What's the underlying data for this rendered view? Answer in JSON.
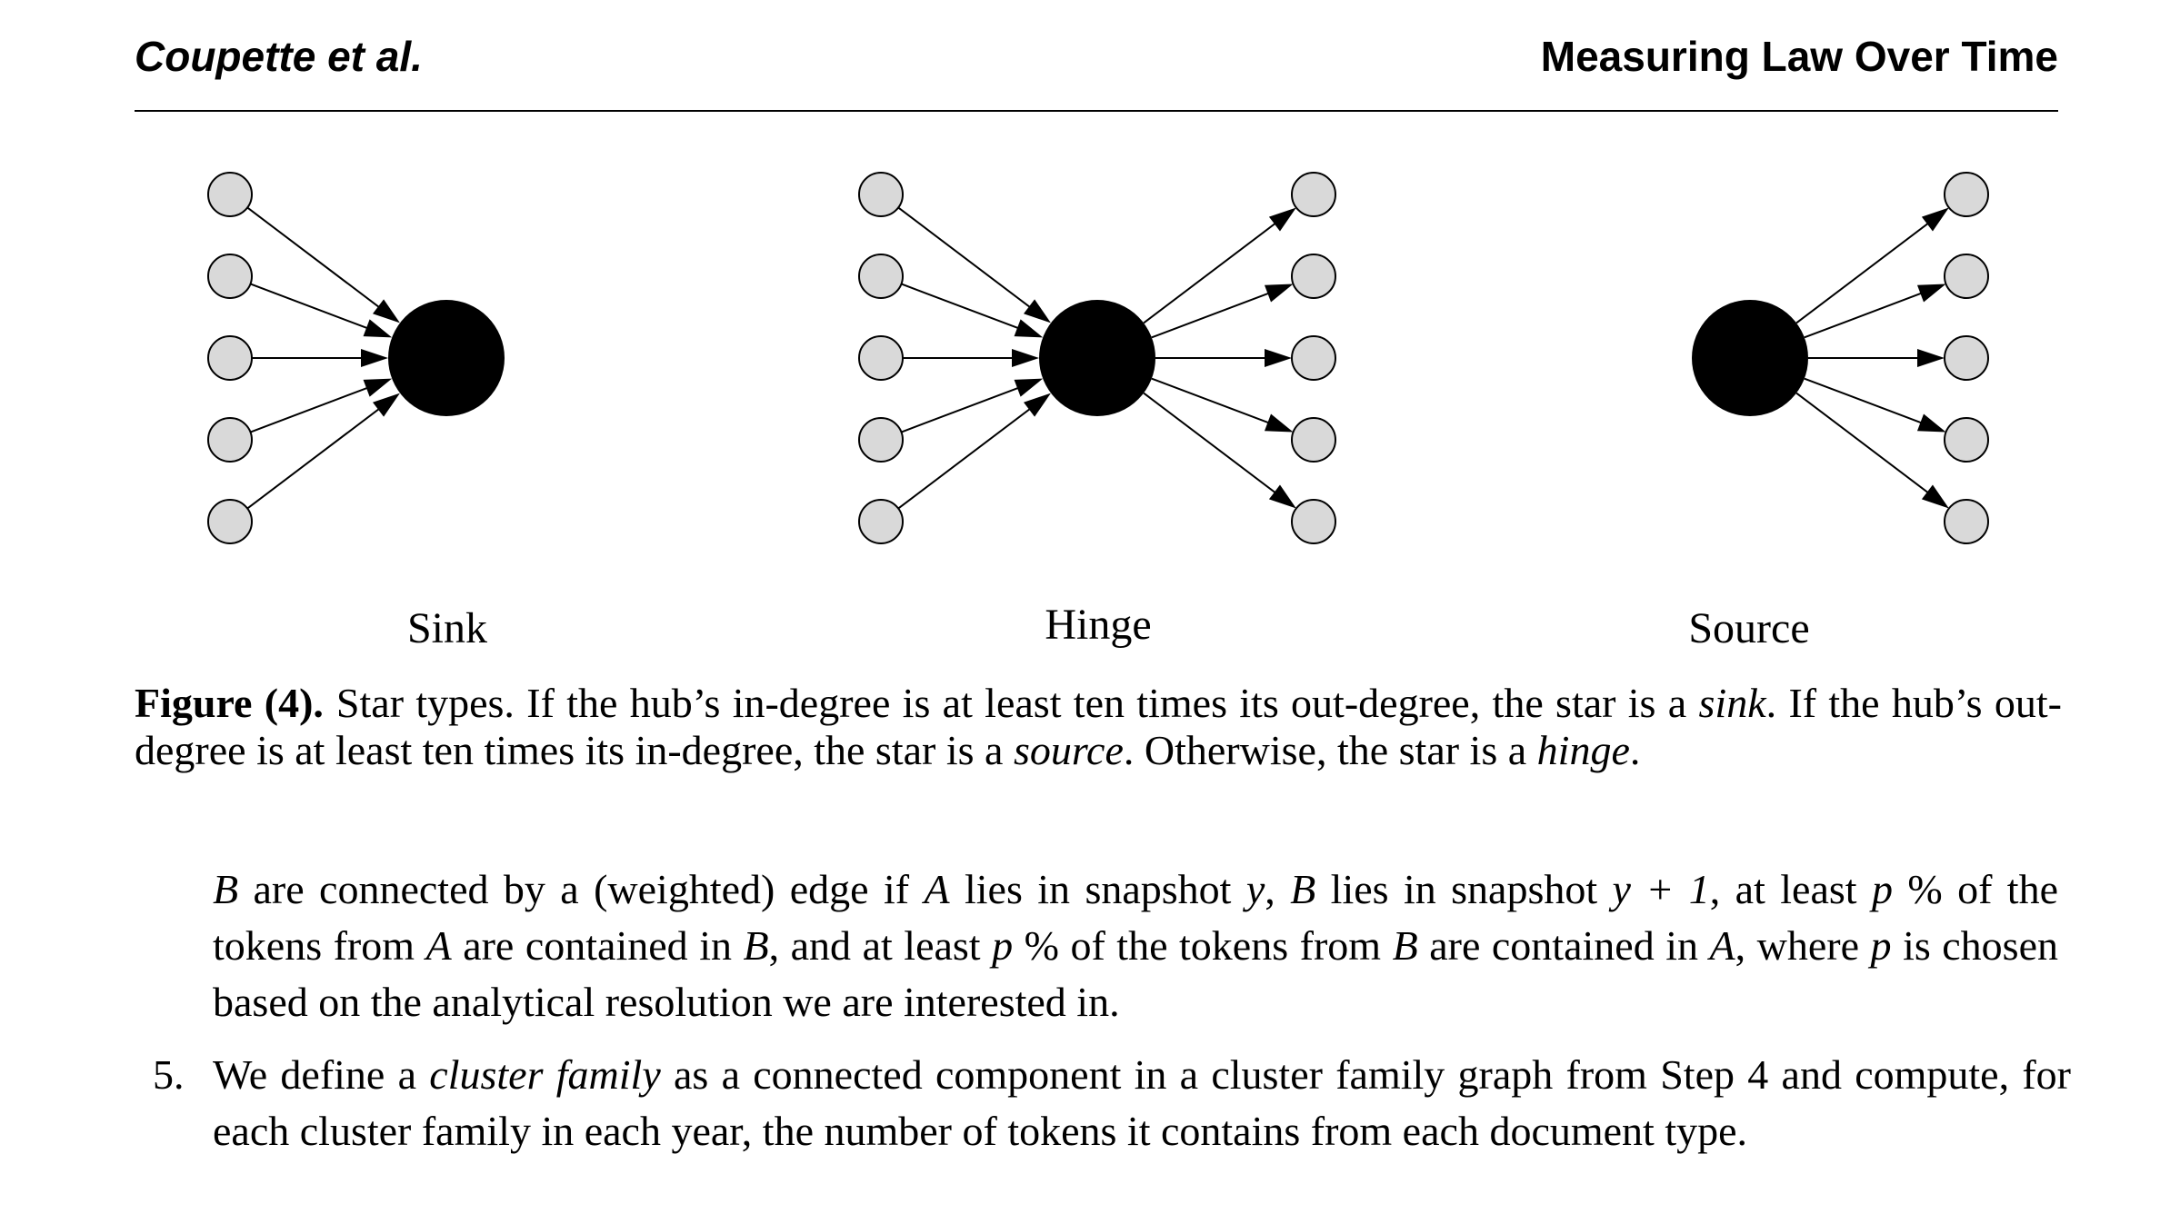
{
  "header": {
    "authors": "Coupette et al.",
    "title": "Measuring Law Over Time"
  },
  "figure": {
    "stars": [
      {
        "label": "Sink",
        "in_edges": 5,
        "out_edges": 0
      },
      {
        "label": "Hinge",
        "in_edges": 5,
        "out_edges": 5
      },
      {
        "label": "Source",
        "in_edges": 0,
        "out_edges": 5
      }
    ],
    "colors": {
      "hub": "#000000",
      "leaf_fill": "#d9d9d9",
      "edge": "#000000"
    },
    "caption": {
      "number": "Figure (4).",
      "parts": [
        "Star types. If the hub’s in-degree is at least ten times its out-degree, the star is a ",
        "sink",
        ". If the hub’s out-degree is at least ten times its in-degree, the star is a ",
        "source",
        ". Otherwise, the star is a ",
        "hinge",
        "."
      ]
    }
  },
  "body": {
    "continuation": [
      "B",
      " are connected by a (weighted) edge if ",
      "A",
      " lies in snapshot ",
      "y",
      ", ",
      "B",
      " lies in snapshot ",
      "y + 1",
      ", at least ",
      "p",
      " % of the tokens from ",
      "A",
      " are contained in ",
      "B",
      ", and at least ",
      "p",
      " % of the tokens from ",
      "B",
      " are contained in ",
      "A",
      ", where ",
      "p",
      " is chosen based on the analytical resolution we are interested in."
    ],
    "list_item": {
      "number": "5.",
      "parts": [
        "We define a ",
        "cluster family",
        " as a connected component in a cluster family graph from Step 4 and compute, for each cluster family in each year, the number of tokens it contains from each document type."
      ]
    }
  }
}
